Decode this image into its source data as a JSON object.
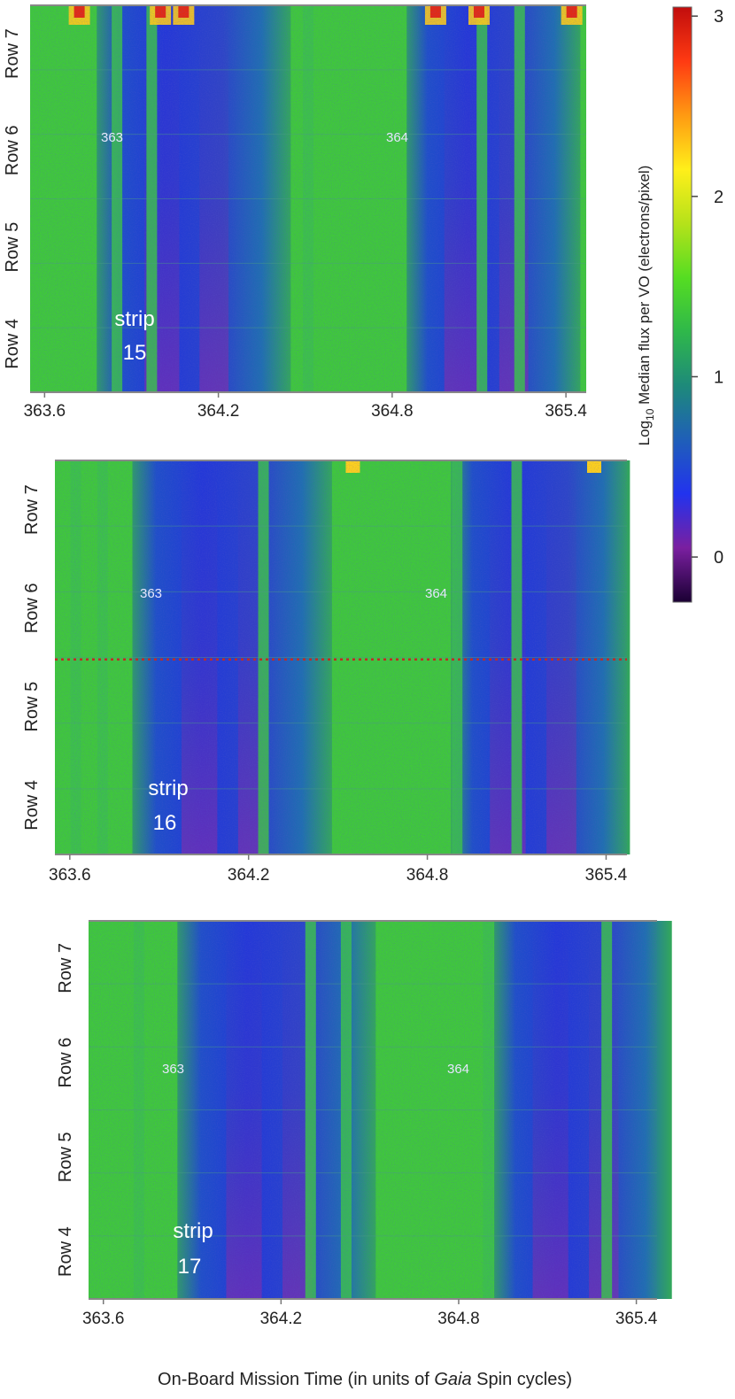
{
  "chart_data": {
    "type": "heatmap",
    "xlabel_parts": [
      "On-Board Mission Time (in units of ",
      "Gaia",
      " Spin cycles)"
    ],
    "x_ticks": [
      "363.6",
      "364.2",
      "364.8",
      "365.4"
    ],
    "x_tick_values": [
      363.6,
      364.2,
      364.8,
      365.4
    ],
    "xlim": [
      363.55,
      365.47
    ],
    "rows": [
      "Row 7",
      "Row 6",
      "Row 5",
      "Row 4"
    ],
    "colorbar": {
      "label_prefix": "Log",
      "label_sub": "10",
      "label_rest": " Median flux per VO (electrons/pixel)",
      "ticks": [
        "3",
        "2",
        "1",
        "0"
      ],
      "tick_values": [
        3,
        2,
        1,
        0
      ],
      "range": [
        -0.25,
        3.05
      ],
      "colors": [
        "#1a0033",
        "#7a1fa0",
        "#2233ee",
        "#1f5fb8",
        "#1e8a7a",
        "#2fb84a",
        "#55dd22",
        "#b5e21a",
        "#ffef1a",
        "#ff9a12",
        "#ff3a12",
        "#c10d0d"
      ]
    },
    "panels": [
      {
        "strip_word": "strip",
        "strip_number": "15",
        "cycle_labels": [
          "363",
          "364"
        ],
        "faint_bands": [
          363.85,
          363.97,
          364.51,
          365.11,
          365.24
        ]
      },
      {
        "strip_word": "strip",
        "strip_number": "16",
        "cycle_labels": [
          "363",
          "364"
        ],
        "faint_bands": [
          363.62,
          363.71,
          364.25,
          364.9,
          365.1
        ]
      },
      {
        "strip_word": "strip",
        "strip_number": "17",
        "cycle_labels": [
          "363",
          "364"
        ],
        "faint_bands": [
          363.72,
          364.3,
          364.42,
          364.9,
          365.3
        ]
      }
    ]
  }
}
